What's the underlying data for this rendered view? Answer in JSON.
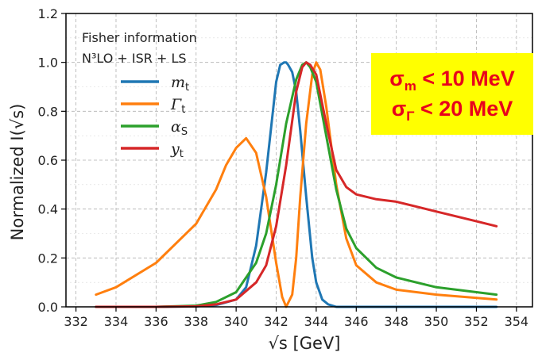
{
  "chart_data": {
    "type": "line",
    "xlabel": "√s [GeV]",
    "ylabel": "Normalized I(√s)",
    "xlim": [
      331.5,
      354.8
    ],
    "ylim": [
      0,
      1.2
    ],
    "xticks": [
      332,
      334,
      336,
      338,
      340,
      342,
      344,
      346,
      348,
      350,
      352,
      354
    ],
    "yticks": [
      0.0,
      0.2,
      0.4,
      0.6,
      0.8,
      1.0,
      1.2
    ],
    "grid": true,
    "legend": {
      "placement": "top-left",
      "title_line1": "Fisher information",
      "title_line2": "N³LO + ISR + LS"
    },
    "series": [
      {
        "name": "m_t",
        "label_main": "m",
        "label_sub": "t",
        "color": "#1f77b4",
        "x": [
          333,
          336,
          338,
          339,
          340,
          340.5,
          341,
          341.5,
          342,
          342.2,
          342.4,
          342.5,
          342.6,
          342.8,
          343,
          343.2,
          343.5,
          343.8,
          344,
          344.3,
          344.6,
          345,
          346,
          350,
          353
        ],
        "y": [
          0,
          0,
          0.002,
          0.007,
          0.03,
          0.08,
          0.25,
          0.55,
          0.92,
          0.99,
          1.0,
          1.0,
          0.99,
          0.96,
          0.88,
          0.72,
          0.45,
          0.2,
          0.1,
          0.03,
          0.01,
          0,
          0,
          0,
          0
        ]
      },
      {
        "name": "Γ_t",
        "label_main": "Γ",
        "label_sub": "t",
        "color": "#ff7f0e",
        "x": [
          333,
          334,
          336,
          338,
          339,
          339.5,
          340,
          340.5,
          341,
          341.5,
          342,
          342.3,
          342.5,
          342.8,
          343,
          343.2,
          343.5,
          343.8,
          344,
          344.2,
          344.5,
          345,
          345.5,
          346,
          347,
          348,
          350,
          353
        ],
        "y": [
          0.05,
          0.08,
          0.18,
          0.34,
          0.48,
          0.58,
          0.65,
          0.69,
          0.63,
          0.45,
          0.18,
          0.04,
          0.0,
          0.05,
          0.2,
          0.45,
          0.75,
          0.95,
          1.0,
          0.97,
          0.82,
          0.5,
          0.28,
          0.17,
          0.1,
          0.07,
          0.05,
          0.03
        ]
      },
      {
        "name": "α_S",
        "label_main": "α",
        "label_sub": "S",
        "color": "#2ca02c",
        "x": [
          333,
          336,
          338,
          339,
          340,
          341,
          341.5,
          342,
          342.5,
          343,
          343.3,
          343.5,
          343.7,
          344,
          344.5,
          345,
          345.5,
          346,
          347,
          348,
          350,
          353
        ],
        "y": [
          0,
          0,
          0.005,
          0.02,
          0.06,
          0.18,
          0.3,
          0.5,
          0.75,
          0.93,
          0.99,
          1.0,
          0.98,
          0.92,
          0.7,
          0.48,
          0.32,
          0.24,
          0.16,
          0.12,
          0.08,
          0.05
        ]
      },
      {
        "name": "y_t",
        "label_main": "y",
        "label_sub": "t",
        "color": "#d62728",
        "x": [
          333,
          336,
          338,
          339,
          340,
          341,
          341.5,
          342,
          342.5,
          343,
          343.3,
          343.5,
          343.7,
          344,
          344.5,
          345,
          345.5,
          346,
          347,
          348,
          349,
          350,
          351,
          352,
          353
        ],
        "y": [
          0,
          0,
          0.002,
          0.01,
          0.03,
          0.1,
          0.17,
          0.33,
          0.58,
          0.88,
          0.98,
          1.0,
          0.99,
          0.95,
          0.75,
          0.56,
          0.49,
          0.46,
          0.44,
          0.43,
          0.41,
          0.39,
          0.37,
          0.35,
          0.33
        ]
      }
    ]
  },
  "annotation": {
    "line1_main": "σ",
    "line1_sub": "m",
    "line1_rest": " < 10 MeV",
    "line2_main": "σ",
    "line2_sub": "Γ",
    "line2_rest": " < 20 MeV"
  }
}
